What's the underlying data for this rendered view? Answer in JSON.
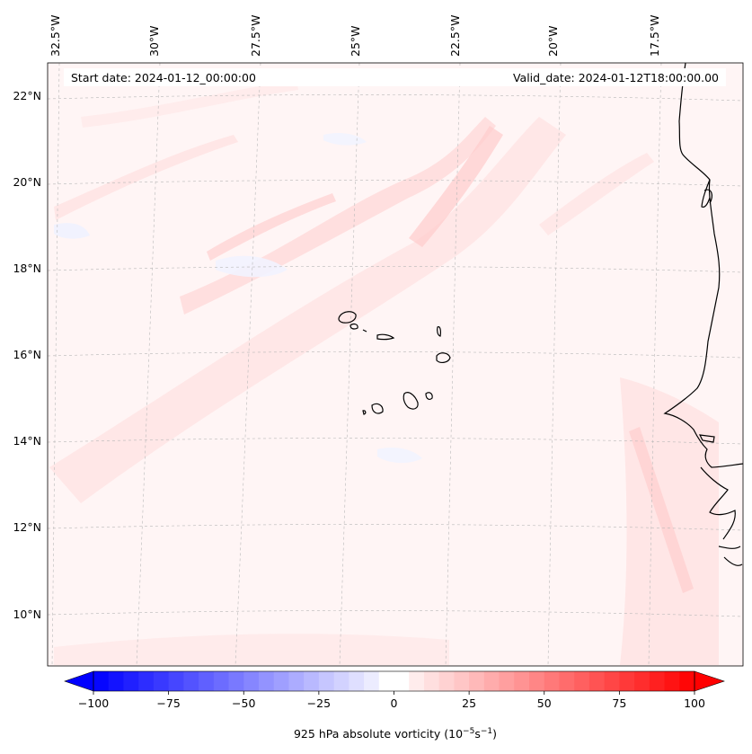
{
  "header": {
    "start_date": "Start date: 2024-01-12_00:00:00",
    "valid_date": "Valid_date: 2024-01-12T18:00:00.00"
  },
  "longitude_labels": [
    "32.5°W",
    "30°W",
    "27.5°W",
    "25°W",
    "22.5°W",
    "20°W",
    "17.5°W"
  ],
  "latitude_labels": [
    "22°N",
    "20°N",
    "18°N",
    "16°N",
    "14°N",
    "12°N",
    "10°N"
  ],
  "colorbar": {
    "min": -100,
    "max": 100,
    "step": 5,
    "ticks": [
      "−100",
      "−75",
      "−50",
      "−25",
      "0",
      "25",
      "50",
      "75",
      "100"
    ],
    "label_prefix": "925 hPa absolute vorticity (10",
    "label_exp1": "−5",
    "label_mid": "s",
    "label_exp2": "−1",
    "label_suffix": ")",
    "colors": {
      "negative": "#0000ff",
      "zero": "#ffffff",
      "positive": "#ff0000"
    }
  }
}
